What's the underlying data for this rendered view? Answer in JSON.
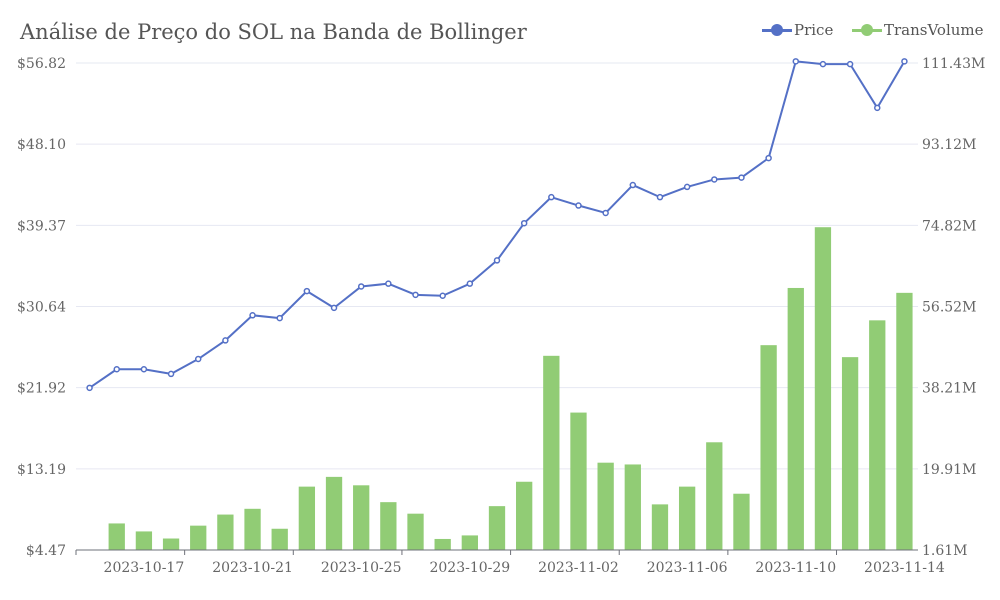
{
  "chart_data": {
    "type": "bar+line",
    "title": "Análise de Preço do SOL na Banda de Bollinger",
    "x": [
      "2023-10-15",
      "2023-10-16",
      "2023-10-17",
      "2023-10-18",
      "2023-10-19",
      "2023-10-20",
      "2023-10-21",
      "2023-10-22",
      "2023-10-23",
      "2023-10-24",
      "2023-10-25",
      "2023-10-26",
      "2023-10-27",
      "2023-10-28",
      "2023-10-29",
      "2023-10-30",
      "2023-10-31",
      "2023-11-01",
      "2023-11-02",
      "2023-11-03",
      "2023-11-04",
      "2023-11-05",
      "2023-11-06",
      "2023-11-07",
      "2023-11-08",
      "2023-11-09",
      "2023-11-10",
      "2023-11-11",
      "2023-11-12",
      "2023-11-13",
      "2023-11-14"
    ],
    "x_tick_labels": [
      "2023-10-17",
      "2023-10-21",
      "2023-10-25",
      "2023-10-29",
      "2023-11-02",
      "2023-11-06",
      "2023-11-10",
      "2023-11-14"
    ],
    "series": [
      {
        "name": "Price",
        "type": "line",
        "axis": "left",
        "color": "#5470c6",
        "values": [
          21.9,
          23.9,
          23.9,
          23.4,
          25.0,
          27.0,
          29.7,
          29.4,
          32.3,
          30.5,
          32.8,
          33.1,
          31.9,
          31.8,
          33.1,
          35.6,
          39.6,
          42.4,
          41.5,
          40.7,
          43.7,
          42.4,
          43.5,
          44.3,
          44.5,
          46.6,
          57.0,
          56.7,
          56.7,
          52.0,
          57.0
        ]
      },
      {
        "name": "TransVolume",
        "type": "bar",
        "axis": "right",
        "color": "#91cc75",
        "values": [
          1.61,
          7.6,
          5.8,
          4.2,
          7.1,
          9.6,
          10.9,
          6.4,
          15.9,
          18.1,
          16.2,
          12.4,
          9.8,
          4.1,
          4.9,
          11.5,
          17.0,
          45.4,
          32.6,
          21.3,
          20.9,
          11.9,
          15.9,
          25.9,
          14.3,
          47.8,
          60.7,
          74.4,
          45.1,
          53.4,
          59.6
        ]
      }
    ],
    "y_left": {
      "ticks": [
        "$4.47",
        "$13.19",
        "$21.92",
        "$30.64",
        "$39.37",
        "$48.10",
        "$56.82"
      ],
      "min": 4.47,
      "max": 56.82
    },
    "y_right": {
      "ticks": [
        "1.61M",
        "19.91M",
        "38.21M",
        "56.52M",
        "74.82M",
        "93.12M",
        "111.43M"
      ],
      "min": 1.61,
      "max": 111.43,
      "unit": "M"
    },
    "grid": true,
    "legend_position": "top-right"
  }
}
